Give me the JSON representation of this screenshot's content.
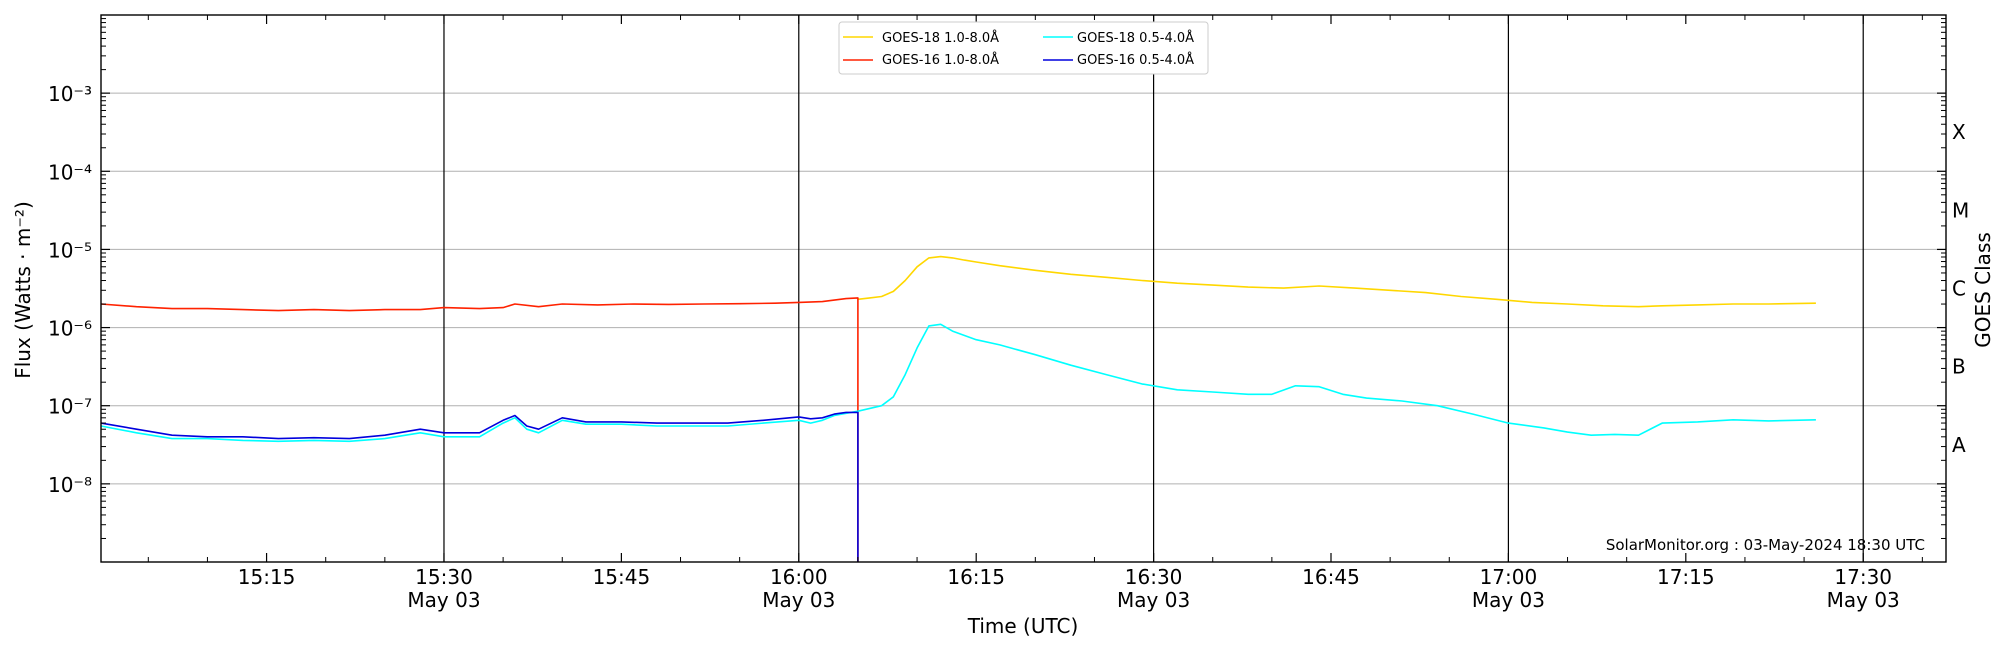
{
  "chart_data": {
    "type": "line",
    "title": "",
    "xlabel": "Time (UTC)",
    "ylabel": "Flux (Watts · m⁻²)",
    "y2label": "GOES Class",
    "credit": "SolarMonitor.org : 03-May-2024 18:30 UTC",
    "y_scale": "log",
    "ylim": [
      1e-09,
      0.01
    ],
    "xlim": [
      "15:01",
      "17:37"
    ],
    "grid": "horizontal at each decade, vertical at each half hour",
    "legend_position": "top-center",
    "yticks": [
      {
        "exp": -8,
        "label": "10⁻⁸"
      },
      {
        "exp": -7,
        "label": "10⁻⁷"
      },
      {
        "exp": -6,
        "label": "10⁻⁶"
      },
      {
        "exp": -5,
        "label": "10⁻⁵"
      },
      {
        "exp": -4,
        "label": "10⁻⁴"
      },
      {
        "exp": -3,
        "label": "10⁻³"
      }
    ],
    "xticks": [
      {
        "t": "15:15",
        "label": "15:15",
        "date": ""
      },
      {
        "t": "15:30",
        "label": "15:30",
        "date": "May 03"
      },
      {
        "t": "15:45",
        "label": "15:45",
        "date": ""
      },
      {
        "t": "16:00",
        "label": "16:00",
        "date": "May 03"
      },
      {
        "t": "16:15",
        "label": "16:15",
        "date": ""
      },
      {
        "t": "16:30",
        "label": "16:30",
        "date": "May 03"
      },
      {
        "t": "16:45",
        "label": "16:45",
        "date": ""
      },
      {
        "t": "17:00",
        "label": "17:00",
        "date": "May 03"
      },
      {
        "t": "17:15",
        "label": "17:15",
        "date": ""
      },
      {
        "t": "17:30",
        "label": "17:30",
        "date": "May 03"
      }
    ],
    "goes_classes": [
      {
        "label": "A",
        "low": 1e-08,
        "high": 1e-07
      },
      {
        "label": "B",
        "low": 1e-07,
        "high": 1e-06
      },
      {
        "label": "C",
        "low": 1e-06,
        "high": 1e-05
      },
      {
        "label": "M",
        "low": 1e-05,
        "high": 0.0001
      },
      {
        "label": "X",
        "low": 0.0001,
        "high": 0.001
      }
    ],
    "series": [
      {
        "name": "GOES-18 1.0-8.0Å",
        "color": "#FFD700",
        "x": [
          "16:05",
          "16:06",
          "16:07",
          "16:08",
          "16:09",
          "16:10",
          "16:11",
          "16:12",
          "16:13",
          "16:14",
          "16:15",
          "16:17",
          "16:20",
          "16:23",
          "16:26",
          "16:29",
          "16:32",
          "16:35",
          "16:38",
          "16:41",
          "16:44",
          "16:47",
          "16:50",
          "16:53",
          "16:56",
          "16:59",
          "17:02",
          "17:05",
          "17:08",
          "17:11",
          "17:13",
          "17:16",
          "17:19",
          "17:22",
          "17:26"
        ],
        "y": [
          2.3e-06,
          2.4e-06,
          2.5e-06,
          2.9e-06,
          4e-06,
          6e-06,
          7.8e-06,
          8.1e-06,
          7.8e-06,
          7.3e-06,
          6.9e-06,
          6.2e-06,
          5.4e-06,
          4.8e-06,
          4.4e-06,
          4e-06,
          3.7e-06,
          3.5e-06,
          3.3e-06,
          3.2e-06,
          3.4e-06,
          3.2e-06,
          3e-06,
          2.8e-06,
          2.5e-06,
          2.3e-06,
          2.1e-06,
          2e-06,
          1.9e-06,
          1.85e-06,
          1.9e-06,
          1.95e-06,
          2e-06,
          2e-06,
          2.05e-06
        ]
      },
      {
        "name": "GOES-16 1.0-8.0Å",
        "color": "#FF2200",
        "x": [
          "15:01",
          "15:04",
          "15:07",
          "15:10",
          "15:13",
          "15:16",
          "15:19",
          "15:22",
          "15:25",
          "15:28",
          "15:30",
          "15:33",
          "15:35",
          "15:36",
          "15:38",
          "15:40",
          "15:43",
          "15:46",
          "15:49",
          "15:52",
          "15:55",
          "15:58",
          "16:00",
          "16:02",
          "16:03",
          "16:04",
          "16:05"
        ],
        "y": [
          2e-06,
          1.85e-06,
          1.75e-06,
          1.75e-06,
          1.7e-06,
          1.65e-06,
          1.7e-06,
          1.65e-06,
          1.7e-06,
          1.7e-06,
          1.8e-06,
          1.75e-06,
          1.8e-06,
          2e-06,
          1.85e-06,
          2e-06,
          1.95e-06,
          2e-06,
          1.98e-06,
          2e-06,
          2.02e-06,
          2.05e-06,
          2.1e-06,
          2.15e-06,
          2.25e-06,
          2.35e-06,
          2.4e-06
        ],
        "drop_at": "16:05"
      },
      {
        "name": "GOES-18 0.5-4.0Å",
        "color": "#00FFFF",
        "x": [
          "15:01",
          "15:04",
          "15:07",
          "15:10",
          "15:13",
          "15:16",
          "15:19",
          "15:22",
          "15:25",
          "15:28",
          "15:30",
          "15:33",
          "15:35",
          "15:36",
          "15:37",
          "15:38",
          "15:40",
          "15:42",
          "15:45",
          "15:48",
          "15:51",
          "15:54",
          "15:57",
          "16:00",
          "16:01",
          "16:02",
          "16:03",
          "16:04",
          "16:05",
          "16:07",
          "16:08",
          "16:09",
          "16:10",
          "16:11",
          "16:12",
          "16:13",
          "16:15",
          "16:17",
          "16:20",
          "16:23",
          "16:26",
          "16:29",
          "16:32",
          "16:35",
          "16:38",
          "16:40",
          "16:42",
          "16:44",
          "16:46",
          "16:48",
          "16:51",
          "16:54",
          "16:57",
          "17:00",
          "17:03",
          "17:05",
          "17:07",
          "17:09",
          "17:11",
          "17:13",
          "17:16",
          "17:19",
          "17:22",
          "17:26"
        ],
        "y": [
          5.5e-08,
          4.5e-08,
          3.8e-08,
          3.8e-08,
          3.6e-08,
          3.5e-08,
          3.6e-08,
          3.5e-08,
          3.8e-08,
          4.5e-08,
          4e-08,
          4e-08,
          6e-08,
          7e-08,
          5e-08,
          4.5e-08,
          6.5e-08,
          5.8e-08,
          5.8e-08,
          5.5e-08,
          5.5e-08,
          5.5e-08,
          6e-08,
          6.5e-08,
          6e-08,
          6.5e-08,
          7.5e-08,
          8e-08,
          8.5e-08,
          1e-07,
          1.3e-07,
          2.5e-07,
          5.5e-07,
          1.05e-06,
          1.1e-06,
          9e-07,
          7e-07,
          6e-07,
          4.5e-07,
          3.3e-07,
          2.5e-07,
          1.9e-07,
          1.6e-07,
          1.5e-07,
          1.4e-07,
          1.4e-07,
          1.8e-07,
          1.75e-07,
          1.4e-07,
          1.25e-07,
          1.15e-07,
          1e-07,
          7.8e-08,
          6e-08,
          5.2e-08,
          4.6e-08,
          4.2e-08,
          4.3e-08,
          4.2e-08,
          6e-08,
          6.2e-08,
          6.6e-08,
          6.4e-08,
          6.6e-08
        ]
      },
      {
        "name": "GOES-16 0.5-4.0Å",
        "color": "#0000DD",
        "x": [
          "15:01",
          "15:04",
          "15:07",
          "15:10",
          "15:13",
          "15:16",
          "15:19",
          "15:22",
          "15:25",
          "15:28",
          "15:30",
          "15:33",
          "15:35",
          "15:36",
          "15:37",
          "15:38",
          "15:40",
          "15:42",
          "15:45",
          "15:48",
          "15:51",
          "15:54",
          "15:57",
          "16:00",
          "16:01",
          "16:02",
          "16:03",
          "16:04",
          "16:05"
        ],
        "y": [
          6e-08,
          5e-08,
          4.2e-08,
          4e-08,
          4e-08,
          3.8e-08,
          3.9e-08,
          3.8e-08,
          4.2e-08,
          5e-08,
          4.5e-08,
          4.5e-08,
          6.5e-08,
          7.5e-08,
          5.5e-08,
          5e-08,
          7e-08,
          6.2e-08,
          6.2e-08,
          6e-08,
          6e-08,
          6e-08,
          6.5e-08,
          7.2e-08,
          6.8e-08,
          7e-08,
          7.8e-08,
          8.2e-08,
          8.2e-08
        ],
        "drop_at": "16:05"
      }
    ]
  }
}
